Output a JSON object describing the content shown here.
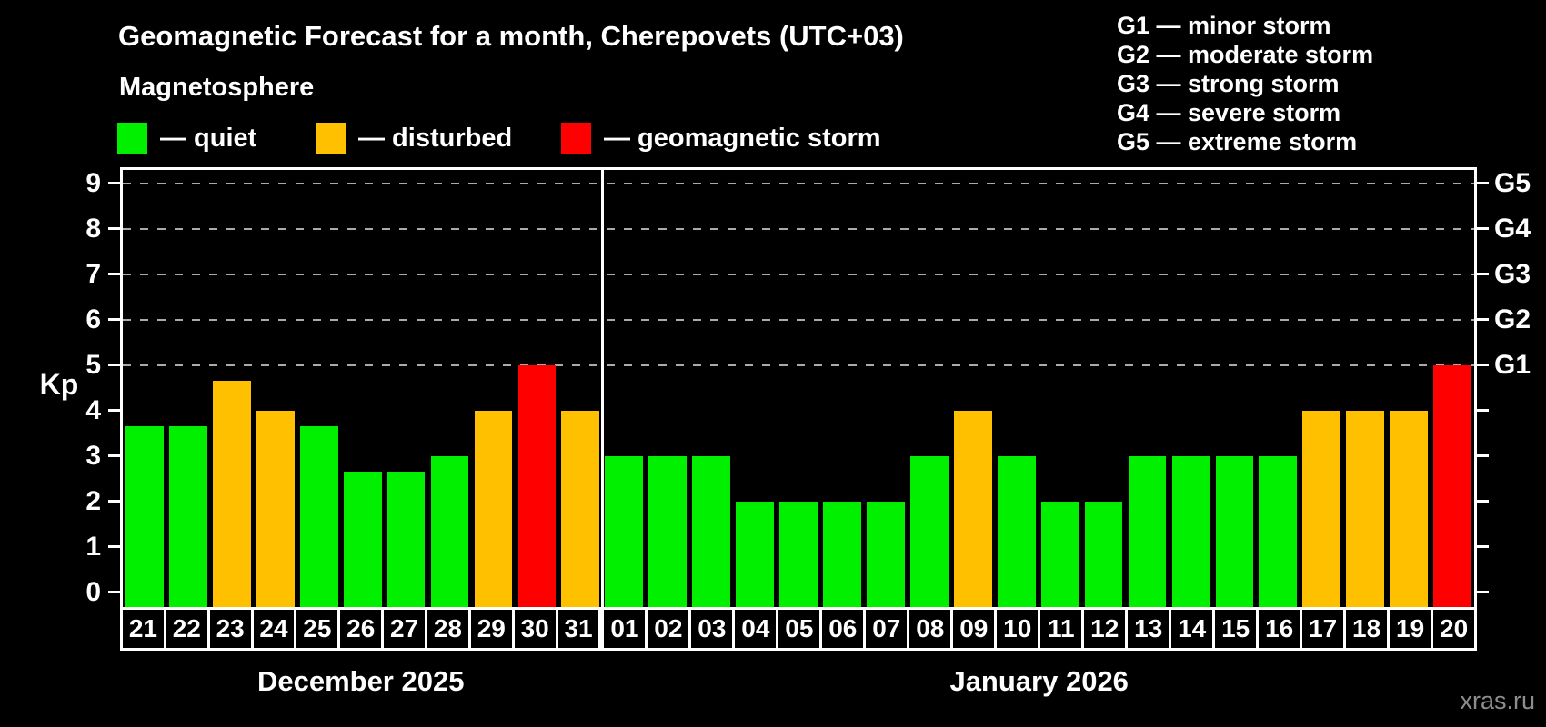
{
  "title": "Geomagnetic Forecast for a month, Cherepovets (UTC+03)",
  "legend": {
    "heading": "Magnetosphere",
    "items": [
      {
        "key": "quiet",
        "label": "— quiet",
        "color": "#00f000"
      },
      {
        "key": "disturbed",
        "label": "— disturbed",
        "color": "#ffc000"
      },
      {
        "key": "storm",
        "label": "— geomagnetic storm",
        "color": "#ff0000"
      }
    ]
  },
  "storm_scale_legend": [
    "G1 — minor storm",
    "G2 — moderate storm",
    "G3 — strong storm",
    "G4 — severe storm",
    "G5 — extreme storm"
  ],
  "watermark": "xras.ru",
  "chart_data": {
    "type": "bar",
    "title": "Geomagnetic Forecast for a month, Cherepovets (UTC+03)",
    "ylabel": "Kp",
    "ylim": [
      0,
      9
    ],
    "yticks": [
      0,
      1,
      2,
      3,
      4,
      5,
      6,
      7,
      8,
      9
    ],
    "gridlines": [
      5,
      6,
      7,
      8,
      9
    ],
    "grid": "dashed horizontal at Kp 5-9 only",
    "legend_position": "top",
    "right_axis": [
      {
        "kp": 5,
        "label": "G1"
      },
      {
        "kp": 6,
        "label": "G2"
      },
      {
        "kp": 7,
        "label": "G3"
      },
      {
        "kp": 8,
        "label": "G4"
      },
      {
        "kp": 9,
        "label": "G5"
      }
    ],
    "level_colors": {
      "quiet": "#00f000",
      "disturbed": "#ffc000",
      "storm": "#ff0000"
    },
    "groups": [
      {
        "month_label": "December 2025",
        "days": [
          {
            "day": "21",
            "kp": 3.67,
            "level": "quiet"
          },
          {
            "day": "22",
            "kp": 3.67,
            "level": "quiet"
          },
          {
            "day": "23",
            "kp": 4.67,
            "level": "disturbed"
          },
          {
            "day": "24",
            "kp": 4,
            "level": "disturbed"
          },
          {
            "day": "25",
            "kp": 3.67,
            "level": "quiet"
          },
          {
            "day": "26",
            "kp": 2.67,
            "level": "quiet"
          },
          {
            "day": "27",
            "kp": 2.67,
            "level": "quiet"
          },
          {
            "day": "28",
            "kp": 3,
            "level": "quiet"
          },
          {
            "day": "29",
            "kp": 4,
            "level": "disturbed"
          },
          {
            "day": "30",
            "kp": 5,
            "level": "storm"
          },
          {
            "day": "31",
            "kp": 4,
            "level": "disturbed"
          }
        ]
      },
      {
        "month_label": "January 2026",
        "days": [
          {
            "day": "01",
            "kp": 3,
            "level": "quiet"
          },
          {
            "day": "02",
            "kp": 3,
            "level": "quiet"
          },
          {
            "day": "03",
            "kp": 3,
            "level": "quiet"
          },
          {
            "day": "04",
            "kp": 2,
            "level": "quiet"
          },
          {
            "day": "05",
            "kp": 2,
            "level": "quiet"
          },
          {
            "day": "06",
            "kp": 2,
            "level": "quiet"
          },
          {
            "day": "07",
            "kp": 2,
            "level": "quiet"
          },
          {
            "day": "08",
            "kp": 3,
            "level": "quiet"
          },
          {
            "day": "09",
            "kp": 4,
            "level": "disturbed"
          },
          {
            "day": "10",
            "kp": 3,
            "level": "quiet"
          },
          {
            "day": "11",
            "kp": 2,
            "level": "quiet"
          },
          {
            "day": "12",
            "kp": 2,
            "level": "quiet"
          },
          {
            "day": "13",
            "kp": 3,
            "level": "quiet"
          },
          {
            "day": "14",
            "kp": 3,
            "level": "quiet"
          },
          {
            "day": "15",
            "kp": 3,
            "level": "quiet"
          },
          {
            "day": "16",
            "kp": 3,
            "level": "quiet"
          },
          {
            "day": "17",
            "kp": 4,
            "level": "disturbed"
          },
          {
            "day": "18",
            "kp": 4,
            "level": "disturbed"
          },
          {
            "day": "19",
            "kp": 4,
            "level": "disturbed"
          },
          {
            "day": "20",
            "kp": 5,
            "level": "storm"
          }
        ]
      }
    ]
  }
}
